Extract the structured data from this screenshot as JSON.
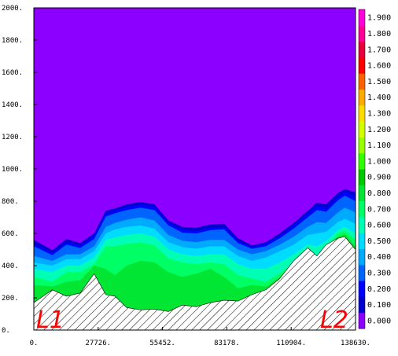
{
  "chart_data": {
    "type": "contour",
    "x_range": [
      0,
      138630
    ],
    "y_range": [
      0,
      2000
    ],
    "x_ticks": [
      {
        "value": 0,
        "label": "0."
      },
      {
        "value": 27726,
        "label": "27726."
      },
      {
        "value": 55452,
        "label": "55452."
      },
      {
        "value": 83178,
        "label": "83178."
      },
      {
        "value": 110904,
        "label": "110904."
      },
      {
        "value": 138630,
        "label": "138630."
      }
    ],
    "y_ticks": [
      {
        "value": 0,
        "label": "0."
      },
      {
        "value": 200,
        "label": "200."
      },
      {
        "value": 400,
        "label": "400."
      },
      {
        "value": 600,
        "label": "600."
      },
      {
        "value": 800,
        "label": "800."
      },
      {
        "value": 1000,
        "label": "1000."
      },
      {
        "value": 1200,
        "label": "1200."
      },
      {
        "value": 1400,
        "label": "1400."
      },
      {
        "value": 1600,
        "label": "1600."
      },
      {
        "value": 1800,
        "label": "1800."
      },
      {
        "value": 2000,
        "label": "2000."
      }
    ],
    "colorbar": {
      "levels": [
        "0.000",
        "0.100",
        "0.200",
        "0.300",
        "0.400",
        "0.500",
        "0.600",
        "0.700",
        "0.800",
        "0.900",
        "1.000",
        "1.100",
        "1.200",
        "1.300",
        "1.400",
        "1.500",
        "1.600",
        "1.700",
        "1.800",
        "1.900"
      ],
      "colors": [
        "#8c00ff",
        "#0000cd",
        "#0000ff",
        "#0064ff",
        "#00aaff",
        "#00dcff",
        "#00ffb4",
        "#00ff64",
        "#00e632",
        "#00c800",
        "#32ff00",
        "#96ff00",
        "#d2ff00",
        "#ffdc00",
        "#ffaa00",
        "#ff6400",
        "#ff0000",
        "#e6003c",
        "#ff0096",
        "#ff00dc"
      ]
    },
    "background_color": "#8c00ff",
    "terrain": {
      "x": [
        0,
        8000,
        14000,
        20000,
        26000,
        31000,
        35000,
        40000,
        46000,
        52000,
        58000,
        64000,
        70000,
        76000,
        82000,
        88000,
        94000,
        100000,
        106000,
        112000,
        118000,
        122000,
        126000,
        131000,
        134000,
        138630
      ],
      "y": [
        170,
        250,
        210,
        230,
        350,
        220,
        210,
        140,
        125,
        130,
        115,
        155,
        145,
        170,
        185,
        180,
        220,
        250,
        320,
        430,
        510,
        460,
        530,
        570,
        580,
        500
      ]
    },
    "contour_bands": [
      {
        "level": 0.1,
        "color": "#0000cd",
        "top": [
          560,
          495,
          565,
          540,
          600,
          740,
          755,
          780,
          795,
          780,
          680,
          640,
          635,
          655,
          660,
          570,
          525,
          545,
          600,
          665,
          740,
          790,
          780,
          850,
          875,
          855
        ]
      },
      {
        "level": 0.2,
        "color": "#0000ff",
        "top": [
          535,
          480,
          545,
          525,
          585,
          725,
          740,
          765,
          780,
          765,
          665,
          625,
          615,
          635,
          640,
          555,
          515,
          535,
          585,
          650,
          725,
          770,
          755,
          830,
          860,
          830
        ]
      },
      {
        "level": 0.3,
        "color": "#0064ff",
        "top": [
          520,
          465,
          530,
          510,
          565,
          705,
          725,
          745,
          760,
          745,
          650,
          605,
          600,
          620,
          625,
          540,
          505,
          520,
          570,
          630,
          700,
          745,
          735,
          805,
          835,
          800
        ]
      },
      {
        "level": 0.4,
        "color": "#00aaff",
        "top": [
          460,
          430,
          470,
          470,
          520,
          640,
          665,
          685,
          700,
          680,
          590,
          555,
          545,
          560,
          560,
          500,
          470,
          490,
          530,
          580,
          640,
          670,
          665,
          730,
          760,
          730
        ]
      },
      {
        "level": 0.5,
        "color": "#00dcff",
        "top": [
          420,
          400,
          440,
          440,
          490,
          600,
          625,
          640,
          650,
          630,
          545,
          515,
          505,
          520,
          520,
          460,
          430,
          450,
          490,
          530,
          590,
          600,
          610,
          670,
          690,
          660
        ]
      },
      {
        "level": 0.6,
        "color": "#00ffb4",
        "top": [
          380,
          360,
          400,
          400,
          450,
          560,
          575,
          590,
          600,
          580,
          500,
          470,
          460,
          470,
          470,
          410,
          380,
          380,
          420,
          470,
          530,
          520,
          550,
          620,
          640,
          600
        ]
      },
      {
        "level": 0.7,
        "color": "#00ff64",
        "top": [
          330,
          300,
          360,
          360,
          410,
          520,
          520,
          535,
          545,
          525,
          445,
          420,
          410,
          420,
          410,
          340,
          320,
          300,
          350,
          420,
          500,
          460,
          510,
          600,
          620,
          560
        ]
      },
      {
        "level": 0.8,
        "color": "#00e632",
        "top": [
          280,
          270,
          300,
          310,
          400,
          380,
          340,
          400,
          430,
          420,
          360,
          330,
          350,
          380,
          330,
          260,
          280,
          270,
          330,
          420,
          500,
          460,
          520,
          580,
          600,
          520
        ]
      }
    ]
  },
  "annotations": {
    "left_label": "L1",
    "right_label": "L2"
  }
}
